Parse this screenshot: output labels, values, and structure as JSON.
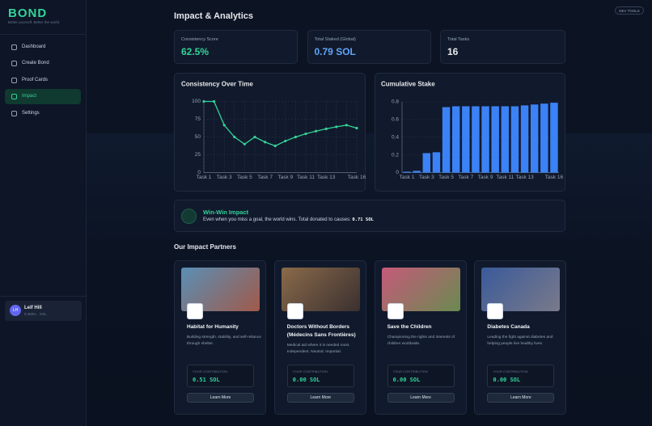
{
  "sidebar": {
    "logo": "BOND",
    "tagline": "Better yourself. Better the world.",
    "nav": [
      "Dashboard",
      "Create Bond",
      "Proof Cards",
      "Impact",
      "Settings"
    ],
    "active": 3,
    "user": {
      "initials": "LH",
      "name": "Leif Hill",
      "wallet": "5.3MM... SOL"
    }
  },
  "dev_tools": "DEV TOOLS",
  "page_title": "Impact & Analytics",
  "stats": [
    {
      "label": "Consistency Score",
      "value": "62.5%",
      "color": "#34d399"
    },
    {
      "label": "Total Staked (Global)",
      "value": "0.79 SOL",
      "color": "#60a5fa"
    },
    {
      "label": "Total Tasks",
      "value": "16",
      "color": "#e5e7eb"
    }
  ],
  "chart_data": [
    {
      "type": "line",
      "title": "Consistency Over Time",
      "categories": [
        "Task 1",
        null,
        "Task 3",
        null,
        "Task 5",
        null,
        "Task 7",
        null,
        "Task 9",
        null,
        "Task 11",
        null,
        "Task 13",
        null,
        null,
        "Task 16"
      ],
      "values": [
        100,
        100,
        66.7,
        50,
        40,
        50,
        42.9,
        37.5,
        44.4,
        50,
        54.5,
        58.3,
        61.5,
        64.3,
        66.7,
        62.5
      ],
      "color": "#34d399",
      "ylim": [
        0,
        100
      ],
      "yticks": [
        0,
        25,
        50,
        75,
        100
      ],
      "grid": true
    },
    {
      "type": "bar",
      "title": "Cumulative Stake",
      "categories": [
        "Task 1",
        null,
        "Task 3",
        null,
        "Task 5",
        null,
        "Task 7",
        null,
        "Task 9",
        null,
        "Task 11",
        null,
        "Task 13",
        null,
        null,
        "Task 16"
      ],
      "values": [
        0.01,
        0.02,
        0.22,
        0.23,
        0.74,
        0.75,
        0.75,
        0.75,
        0.75,
        0.75,
        0.75,
        0.75,
        0.76,
        0.77,
        0.78,
        0.79
      ],
      "color": "#3b82f6",
      "ylim": [
        0,
        0.8
      ],
      "yticks": [
        0,
        0.2,
        0.4,
        0.6,
        0.8
      ],
      "grid": true
    }
  ],
  "impact": {
    "title": "Win-Win Impact",
    "text": "Even when you miss a goal, the world wins. Total donated to causes:",
    "amount": "0.71 SOL"
  },
  "partners_title": "Our Impact Partners",
  "partners": [
    {
      "name": "Habitat for Humanity",
      "description": "Building strength, stability, and self-reliance through shelter.",
      "contribution_label": "YOUR CONTRIBUTION",
      "contribution": "0.51 SOL",
      "link": "Learn More"
    },
    {
      "name": "Doctors Without Borders (Médecins Sans Frontières)",
      "description": "Medical aid where it is needed most. Independent. Neutral. Impartial.",
      "contribution_label": "YOUR CONTRIBUTION",
      "contribution": "0.00 SOL",
      "link": "Learn More"
    },
    {
      "name": "Save the Children",
      "description": "Championing the rights and interests of children worldwide.",
      "contribution_label": "YOUR CONTRIBUTION",
      "contribution": "0.00 SOL",
      "link": "Learn More"
    },
    {
      "name": "Diabetes Canada",
      "description": "Leading the fight against diabetes and helping people live healthy lives.",
      "contribution_label": "YOUR CONTRIBUTION",
      "contribution": "0.00 SOL",
      "link": "Learn More"
    }
  ]
}
